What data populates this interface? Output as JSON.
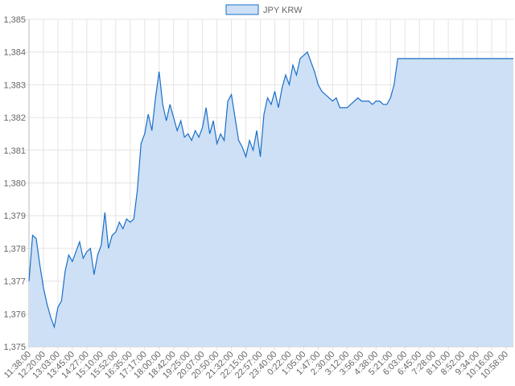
{
  "chart_data": {
    "type": "line",
    "categories": [
      "11:38:00",
      null,
      null,
      null,
      "12:20:00",
      null,
      null,
      null,
      "13:03:00",
      null,
      null,
      null,
      "13:45:00",
      null,
      null,
      null,
      "14:27:00",
      null,
      null,
      null,
      "15:10:00",
      null,
      null,
      null,
      "15:52:00",
      null,
      null,
      null,
      "16:35:00",
      null,
      null,
      null,
      "17:17:00",
      null,
      null,
      null,
      "18:00:00",
      null,
      null,
      null,
      "18:42:00",
      null,
      null,
      null,
      "19:25:00",
      null,
      null,
      null,
      "20:07:00",
      null,
      null,
      null,
      "20:50:00",
      null,
      null,
      null,
      "21:32:00",
      null,
      null,
      null,
      "22:15:00",
      null,
      null,
      null,
      "22:57:00",
      null,
      null,
      null,
      "23:40:00",
      null,
      null,
      null,
      "0:22:00",
      null,
      null,
      null,
      "1:05:00",
      null,
      null,
      null,
      "1:47:00",
      null,
      null,
      null,
      "2:30:00",
      null,
      null,
      null,
      "3:12:00",
      null,
      null,
      null,
      "3:56:00",
      null,
      null,
      null,
      "4:38:00",
      null,
      null,
      null,
      "5:21:00",
      null,
      null,
      null,
      "6:03:00",
      null,
      null,
      null,
      "6:45:00",
      null,
      null,
      null,
      "7:28:00",
      null,
      null,
      null,
      "8:10:00",
      null,
      null,
      null,
      "8:52:00",
      null,
      null,
      null,
      "9:34:00",
      null,
      null,
      null,
      "10:16:00",
      null,
      null,
      null,
      "10:58:00",
      null,
      null
    ],
    "series": [
      {
        "name": "JPY KRW",
        "color": "#1a6fc9",
        "fill": "#cde0f5",
        "values": [
          1377.0,
          1378.4,
          1378.3,
          1377.5,
          1376.8,
          1376.3,
          1375.9,
          1375.6,
          1376.2,
          1376.4,
          1377.3,
          1377.8,
          1377.6,
          1377.9,
          1378.2,
          1377.7,
          1377.9,
          1378.0,
          1377.2,
          1377.8,
          1378.1,
          1379.1,
          1378.0,
          1378.4,
          1378.5,
          1378.8,
          1378.6,
          1378.9,
          1378.8,
          1378.9,
          1379.8,
          1381.2,
          1381.5,
          1382.1,
          1381.6,
          1382.6,
          1383.4,
          1382.4,
          1381.9,
          1382.4,
          1382.0,
          1381.6,
          1381.9,
          1381.4,
          1381.5,
          1381.3,
          1381.6,
          1381.4,
          1381.7,
          1382.3,
          1381.5,
          1381.9,
          1381.2,
          1381.5,
          1381.3,
          1382.5,
          1382.7,
          1382.0,
          1381.3,
          1381.1,
          1380.8,
          1381.3,
          1381.0,
          1381.6,
          1380.8,
          1382.1,
          1382.6,
          1382.4,
          1382.8,
          1382.3,
          1382.9,
          1383.3,
          1383.0,
          1383.6,
          1383.3,
          1383.8,
          1383.9,
          1384.0,
          1383.7,
          1383.4,
          1383.0,
          1382.8,
          1382.7,
          1382.6,
          1382.5,
          1382.6,
          1382.3,
          1382.3,
          1382.3,
          1382.4,
          1382.5,
          1382.6,
          1382.5,
          1382.5,
          1382.5,
          1382.4,
          1382.5,
          1382.5,
          1382.4,
          1382.4,
          1382.6,
          1383.0,
          1383.8,
          1383.8,
          1383.8,
          1383.8,
          1383.8,
          1383.8,
          1383.8,
          1383.8,
          1383.8,
          1383.8,
          1383.8,
          1383.8,
          1383.8,
          1383.8,
          1383.8,
          1383.8,
          1383.8,
          1383.8,
          1383.8,
          1383.8,
          1383.8,
          1383.8,
          1383.8,
          1383.8,
          1383.8,
          1383.8,
          1383.8,
          1383.8,
          1383.8,
          1383.8,
          1383.8,
          1383.8,
          1383.8
        ]
      }
    ],
    "ylim": [
      1375,
      1385
    ],
    "yticks": [
      {
        "value": 1375,
        "label": "1,375"
      },
      {
        "value": 1376,
        "label": "1,376"
      },
      {
        "value": 1377,
        "label": "1,377"
      },
      {
        "value": 1378,
        "label": "1,378"
      },
      {
        "value": 1379,
        "label": "1,379"
      },
      {
        "value": 1380,
        "label": "1,380"
      },
      {
        "value": 1381,
        "label": "1,381"
      },
      {
        "value": 1382,
        "label": "1,382"
      },
      {
        "value": 1383,
        "label": "1,383"
      },
      {
        "value": 1384,
        "label": "1,384"
      },
      {
        "value": 1385,
        "label": "1,385"
      }
    ],
    "grid": true,
    "legend": "top"
  }
}
